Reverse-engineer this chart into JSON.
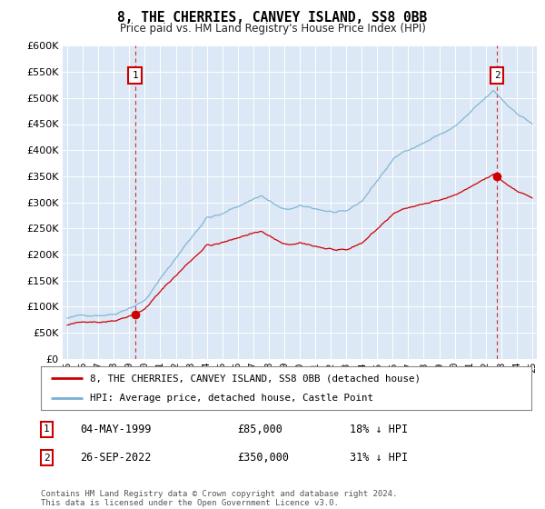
{
  "title": "8, THE CHERRIES, CANVEY ISLAND, SS8 0BB",
  "subtitle": "Price paid vs. HM Land Registry's House Price Index (HPI)",
  "legend_line1": "8, THE CHERRIES, CANVEY ISLAND, SS8 0BB (detached house)",
  "legend_line2": "HPI: Average price, detached house, Castle Point",
  "annotation1": {
    "label": "1",
    "date": "04-MAY-1999",
    "price": "£85,000",
    "hpi": "18% ↓ HPI",
    "x_year": 1999.37,
    "y_val": 85000
  },
  "annotation2": {
    "label": "2",
    "date": "26-SEP-2022",
    "price": "£350,000",
    "hpi": "31% ↓ HPI",
    "x_year": 2022.73,
    "y_val": 350000
  },
  "footnote": "Contains HM Land Registry data © Crown copyright and database right 2024.\nThis data is licensed under the Open Government Licence v3.0.",
  "hpi_color": "#7ab0d4",
  "price_color": "#cc0000",
  "bg_color": "#dce8f5",
  "ylim": [
    0,
    600000
  ],
  "xlim_start": 1994.7,
  "xlim_end": 2025.3,
  "yticks": [
    0,
    50000,
    100000,
    150000,
    200000,
    250000,
    300000,
    350000,
    400000,
    450000,
    500000,
    550000,
    600000
  ],
  "xtick_years": [
    1995,
    1996,
    1997,
    1998,
    1999,
    2000,
    2001,
    2002,
    2003,
    2004,
    2005,
    2006,
    2007,
    2008,
    2009,
    2010,
    2011,
    2012,
    2013,
    2014,
    2015,
    2016,
    2017,
    2018,
    2019,
    2020,
    2021,
    2022,
    2023,
    2024,
    2025
  ]
}
